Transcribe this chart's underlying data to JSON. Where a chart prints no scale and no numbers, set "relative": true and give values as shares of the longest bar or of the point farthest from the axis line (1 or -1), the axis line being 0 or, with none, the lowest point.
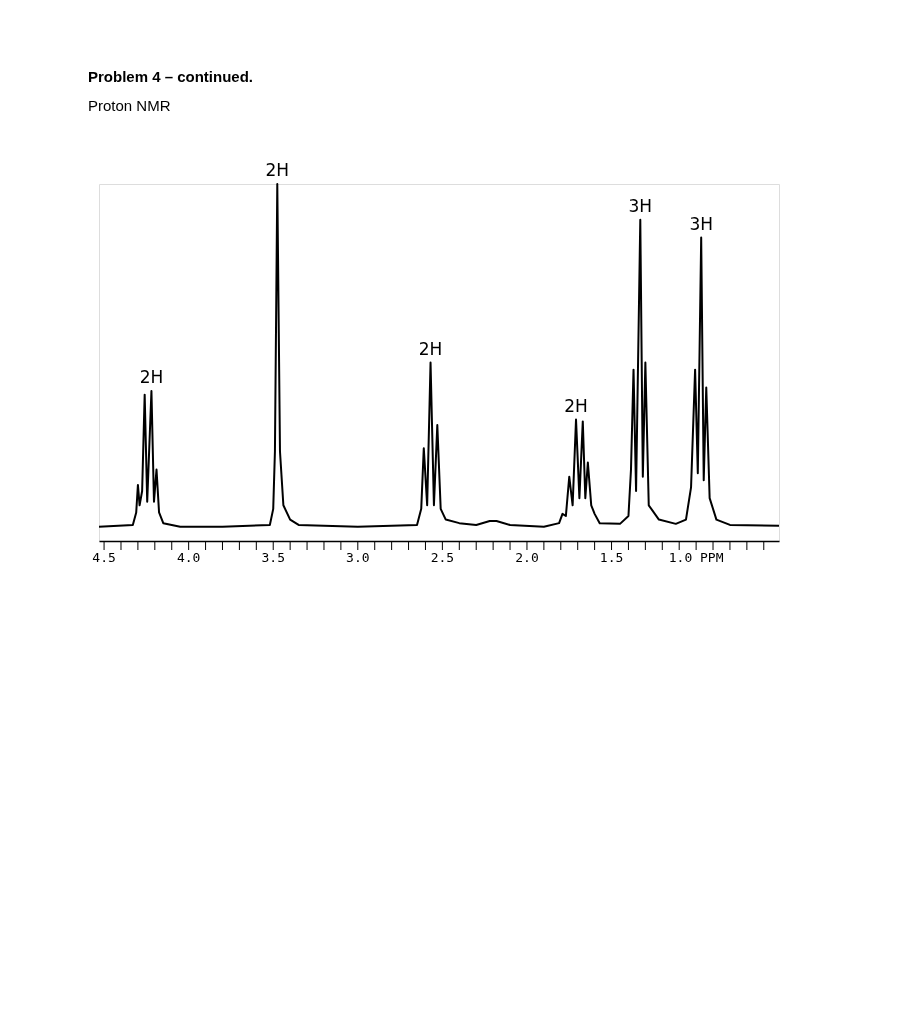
{
  "chart_data": {
    "type": "line",
    "title": "Problem 4 – continued.",
    "subtitle": "Proton NMR",
    "relative": true,
    "grid": false,
    "marker": "none",
    "line_style": "solid",
    "xlim": [
      4.53,
      0.51
    ],
    "xticks": [
      4.5,
      {
        "value": 4.4,
        "label": null
      },
      {
        "value": 4.3,
        "label": null
      },
      {
        "value": 4.2,
        "label": null
      },
      {
        "value": 4.1,
        "label": null
      },
      {
        "value": 4.0,
        "label": "4.0"
      },
      {
        "value": 3.9,
        "label": null
      },
      {
        "value": 3.8,
        "label": null
      },
      {
        "value": 3.7,
        "label": null
      },
      {
        "value": 3.6,
        "label": null
      },
      3.5,
      {
        "value": 3.4,
        "label": null
      },
      {
        "value": 3.3,
        "label": null
      },
      {
        "value": 3.2,
        "label": null
      },
      {
        "value": 3.1,
        "label": null
      },
      {
        "value": 3.0,
        "label": "3.0"
      },
      {
        "value": 2.9,
        "label": null
      },
      {
        "value": 2.8,
        "label": null
      },
      {
        "value": 2.7,
        "label": null
      },
      {
        "value": 2.6,
        "label": null
      },
      2.5,
      {
        "value": 2.4,
        "label": null
      },
      {
        "value": 2.3,
        "label": null
      },
      {
        "value": 2.2,
        "label": null
      },
      {
        "value": 2.1,
        "label": null
      },
      {
        "value": 2.0,
        "label": "2.0"
      },
      {
        "value": 1.9,
        "label": null
      },
      {
        "value": 1.8,
        "label": null
      },
      {
        "value": 1.7,
        "label": null
      },
      {
        "value": 1.6,
        "label": null
      },
      1.5,
      {
        "value": 1.4,
        "label": null
      },
      {
        "value": 1.3,
        "label": null
      },
      {
        "value": 1.2,
        "label": null
      },
      {
        "value": 1.1,
        "label": null
      },
      {
        "value": 1.0,
        "label": "1.0 PPM"
      },
      {
        "value": 0.9,
        "label": null
      },
      {
        "value": 0.8,
        "label": null
      },
      {
        "value": 0.7,
        "label": null
      },
      {
        "value": 0.6,
        "label": null
      }
    ],
    "series": [
      {
        "color": "#000000",
        "x": [
          4.53,
          4.33,
          4.31,
          4.3,
          4.29,
          4.275,
          4.26,
          4.245,
          4.22,
          4.205,
          4.19,
          4.175,
          4.15,
          4.05,
          3.8,
          3.52,
          3.5,
          3.49,
          3.476,
          3.46,
          3.44,
          3.4,
          3.35,
          3.0,
          2.65,
          2.625,
          2.61,
          2.59,
          2.57,
          2.55,
          2.53,
          2.51,
          2.48,
          2.4,
          2.3,
          2.22,
          2.18,
          2.1,
          1.9,
          1.81,
          1.79,
          1.77,
          1.75,
          1.73,
          1.71,
          1.69,
          1.67,
          1.655,
          1.64,
          1.62,
          1.6,
          1.57,
          1.45,
          1.4,
          1.385,
          1.37,
          1.355,
          1.33,
          1.315,
          1.3,
          1.28,
          1.22,
          1.12,
          1.06,
          1.03,
          1.006,
          0.99,
          0.97,
          0.955,
          0.94,
          0.92,
          0.88,
          0.8,
          0.51
        ],
        "values": [
          0.04,
          0.045,
          0.08,
          0.157,
          0.1,
          0.14,
          0.41,
          0.11,
          0.42,
          0.11,
          0.2,
          0.08,
          0.05,
          0.04,
          0.04,
          0.045,
          0.09,
          0.25,
          1.0,
          0.25,
          0.1,
          0.06,
          0.045,
          0.04,
          0.045,
          0.09,
          0.26,
          0.1,
          0.5,
          0.1,
          0.325,
          0.09,
          0.06,
          0.05,
          0.045,
          0.056,
          0.056,
          0.045,
          0.04,
          0.05,
          0.076,
          0.07,
          0.18,
          0.1,
          0.34,
          0.12,
          0.335,
          0.12,
          0.22,
          0.1,
          0.076,
          0.05,
          0.048,
          0.07,
          0.2,
          0.48,
          0.14,
          0.9,
          0.18,
          0.5,
          0.1,
          0.06,
          0.048,
          0.06,
          0.15,
          0.48,
          0.19,
          0.85,
          0.17,
          0.43,
          0.12,
          0.06,
          0.045,
          0.043
        ]
      }
    ],
    "annotations": [
      {
        "text": "2H",
        "x": 4.22,
        "y": 0.42
      },
      {
        "text": "2H",
        "x": 3.476,
        "y": 1.0
      },
      {
        "text": "2H",
        "x": 2.57,
        "y": 0.5
      },
      {
        "text": "2H",
        "x": 1.71,
        "y": 0.34
      },
      {
        "text": "3H",
        "x": 1.33,
        "y": 0.9
      },
      {
        "text": "3H",
        "x": 0.97,
        "y": 0.85
      }
    ]
  }
}
